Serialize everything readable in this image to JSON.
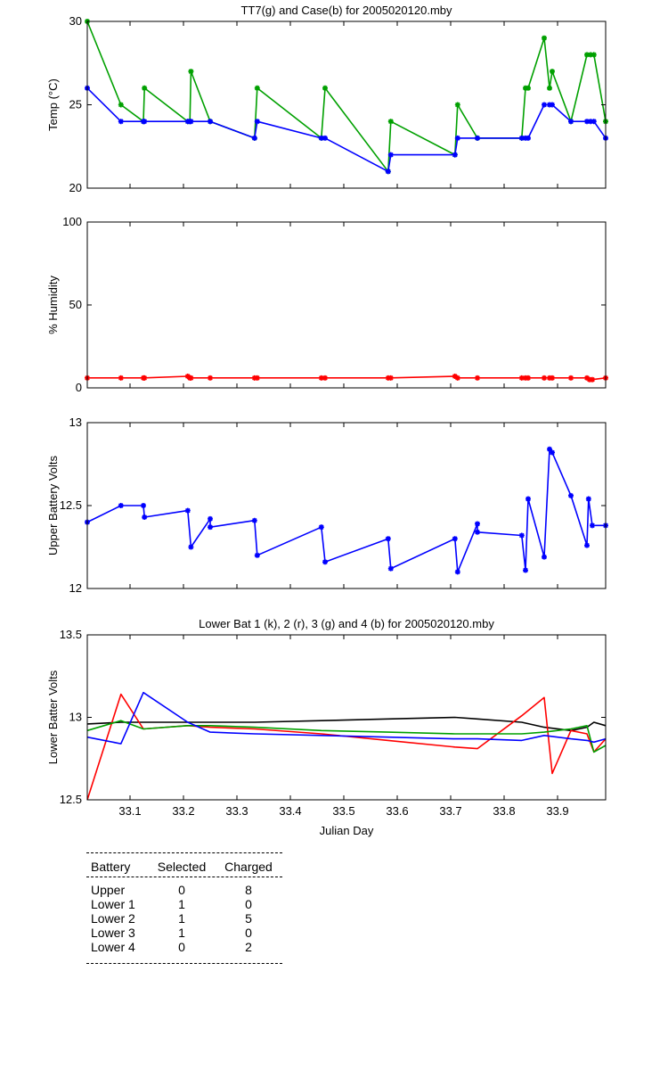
{
  "chart_data": [
    {
      "type": "line",
      "title": "TT7(g) and Case(b) for 2005020120.mby",
      "xlabel": "",
      "ylabel": "Temp  (°C)",
      "xlim": [
        33.02,
        33.99
      ],
      "ylim": [
        20,
        30
      ],
      "yticks": [
        20,
        25,
        30
      ],
      "grid": false,
      "series": [
        {
          "color": "#00a000",
          "marker": "*",
          "x": [
            33.02,
            33.083,
            33.125,
            33.127,
            33.208,
            33.212,
            33.214,
            33.25,
            33.333,
            33.338,
            33.458,
            33.465,
            33.583,
            33.588,
            33.708,
            33.713,
            33.75,
            33.833,
            33.84,
            33.845,
            33.875,
            33.885,
            33.89,
            33.925,
            33.955,
            33.962,
            33.968,
            33.99
          ],
          "y": [
            30,
            25,
            24,
            26,
            24,
            24,
            27,
            24,
            23,
            26,
            23,
            26,
            21,
            24,
            22,
            25,
            23,
            23,
            26,
            26,
            29,
            26,
            27,
            24,
            28,
            28,
            28,
            24
          ]
        },
        {
          "color": "#0000ff",
          "marker": "*",
          "x": [
            33.02,
            33.083,
            33.125,
            33.127,
            33.208,
            33.212,
            33.214,
            33.25,
            33.333,
            33.338,
            33.458,
            33.465,
            33.583,
            33.588,
            33.708,
            33.713,
            33.75,
            33.833,
            33.84,
            33.845,
            33.875,
            33.885,
            33.89,
            33.925,
            33.955,
            33.962,
            33.968,
            33.99
          ],
          "y": [
            26,
            24,
            24,
            24,
            24,
            24,
            24,
            24,
            23,
            24,
            23,
            23,
            21,
            22,
            22,
            23,
            23,
            23,
            23,
            23,
            25,
            25,
            25,
            24,
            24,
            24,
            24,
            23
          ]
        }
      ]
    },
    {
      "type": "line",
      "title": "",
      "xlabel": "",
      "ylabel": "% Humidity",
      "xlim": [
        33.02,
        33.99
      ],
      "ylim": [
        0,
        100
      ],
      "yticks": [
        0,
        50,
        100
      ],
      "grid": false,
      "series": [
        {
          "color": "#ff0000",
          "marker": "*",
          "x": [
            33.02,
            33.083,
            33.125,
            33.127,
            33.208,
            33.212,
            33.214,
            33.25,
            33.333,
            33.338,
            33.458,
            33.465,
            33.583,
            33.588,
            33.708,
            33.713,
            33.75,
            33.833,
            33.84,
            33.845,
            33.875,
            33.885,
            33.89,
            33.925,
            33.955,
            33.96,
            33.965,
            33.99
          ],
          "y": [
            6,
            6,
            6,
            6,
            7,
            6,
            6,
            6,
            6,
            6,
            6,
            6,
            6,
            6,
            7,
            6,
            6,
            6,
            6,
            6,
            6,
            6,
            6,
            6,
            6,
            5,
            5,
            6
          ]
        }
      ]
    },
    {
      "type": "line",
      "title": "",
      "xlabel": "",
      "ylabel": "Upper Battery Volts",
      "xlim": [
        33.02,
        33.99
      ],
      "ylim": [
        12,
        13
      ],
      "yticks": [
        12,
        12.5,
        13
      ],
      "grid": false,
      "series": [
        {
          "color": "#0000ff",
          "marker": "*",
          "x": [
            33.02,
            33.083,
            33.125,
            33.127,
            33.208,
            33.214,
            33.25,
            33.25,
            33.333,
            33.338,
            33.458,
            33.465,
            33.583,
            33.588,
            33.708,
            33.713,
            33.75,
            33.75,
            33.833,
            33.84,
            33.845,
            33.875,
            33.885,
            33.89,
            33.925,
            33.955,
            33.958,
            33.965,
            33.99
          ],
          "y": [
            12.4,
            12.5,
            12.5,
            12.43,
            12.47,
            12.25,
            12.42,
            12.37,
            12.41,
            12.2,
            12.37,
            12.16,
            12.3,
            12.12,
            12.3,
            12.1,
            12.39,
            12.34,
            12.32,
            12.11,
            12.54,
            12.19,
            12.84,
            12.82,
            12.56,
            12.26,
            12.54,
            12.38,
            12.38
          ]
        }
      ]
    },
    {
      "type": "line",
      "title": "Lower Bat 1 (k), 2 (r), 3 (g) and 4 (b) for 2005020120.mby",
      "xlabel": "Julian Day",
      "ylabel": "Lower Batter Volts",
      "xlim": [
        33.02,
        33.99
      ],
      "ylim": [
        12.5,
        13.5
      ],
      "yticks": [
        12.5,
        13,
        13.5
      ],
      "xticks": [
        33.1,
        33.2,
        33.3,
        33.4,
        33.5,
        33.6,
        33.7,
        33.8,
        33.9
      ],
      "grid": false,
      "series": [
        {
          "color": "#000000",
          "x": [
            33.02,
            33.083,
            33.125,
            33.208,
            33.25,
            33.333,
            33.458,
            33.583,
            33.708,
            33.75,
            33.833,
            33.875,
            33.925,
            33.955,
            33.968,
            33.99
          ],
          "y": [
            12.96,
            12.97,
            12.97,
            12.97,
            12.97,
            12.97,
            12.98,
            12.99,
            13,
            12.99,
            12.97,
            12.94,
            12.92,
            12.94,
            12.97,
            12.95
          ]
        },
        {
          "color": "#ff0000",
          "x": [
            33.02,
            33.083,
            33.125,
            33.208,
            33.25,
            33.333,
            33.458,
            33.583,
            33.708,
            33.75,
            33.833,
            33.875,
            33.89,
            33.925,
            33.955,
            33.968,
            33.99
          ],
          "y": [
            12.5,
            13.14,
            12.93,
            12.95,
            12.94,
            12.93,
            12.9,
            12.86,
            12.82,
            12.81,
            13.01,
            13.12,
            12.66,
            12.92,
            12.9,
            12.79,
            12.87
          ]
        },
        {
          "color": "#00a000",
          "x": [
            33.02,
            33.083,
            33.125,
            33.208,
            33.25,
            33.333,
            33.458,
            33.583,
            33.708,
            33.75,
            33.833,
            33.875,
            33.925,
            33.955,
            33.968,
            33.99
          ],
          "y": [
            12.92,
            12.98,
            12.93,
            12.95,
            12.95,
            12.94,
            12.92,
            12.91,
            12.9,
            12.9,
            12.9,
            12.91,
            12.93,
            12.95,
            12.79,
            12.83
          ]
        },
        {
          "color": "#0000ff",
          "x": [
            33.02,
            33.083,
            33.125,
            33.208,
            33.25,
            33.333,
            33.458,
            33.583,
            33.708,
            33.75,
            33.833,
            33.875,
            33.925,
            33.955,
            33.968,
            33.99
          ],
          "y": [
            12.88,
            12.84,
            13.15,
            12.97,
            12.91,
            12.9,
            12.89,
            12.88,
            12.87,
            12.87,
            12.86,
            12.89,
            12.87,
            12.86,
            12.85,
            12.87
          ]
        }
      ]
    }
  ],
  "battery_table": {
    "headers": [
      "Battery",
      "Selected",
      "Charged"
    ],
    "rows": [
      [
        "Upper",
        "0",
        "8"
      ],
      [
        "Lower 1",
        "1",
        "0"
      ],
      [
        "Lower 2",
        "1",
        "5"
      ],
      [
        "Lower 3",
        "1",
        "0"
      ],
      [
        "Lower 4",
        "0",
        "2"
      ]
    ]
  }
}
